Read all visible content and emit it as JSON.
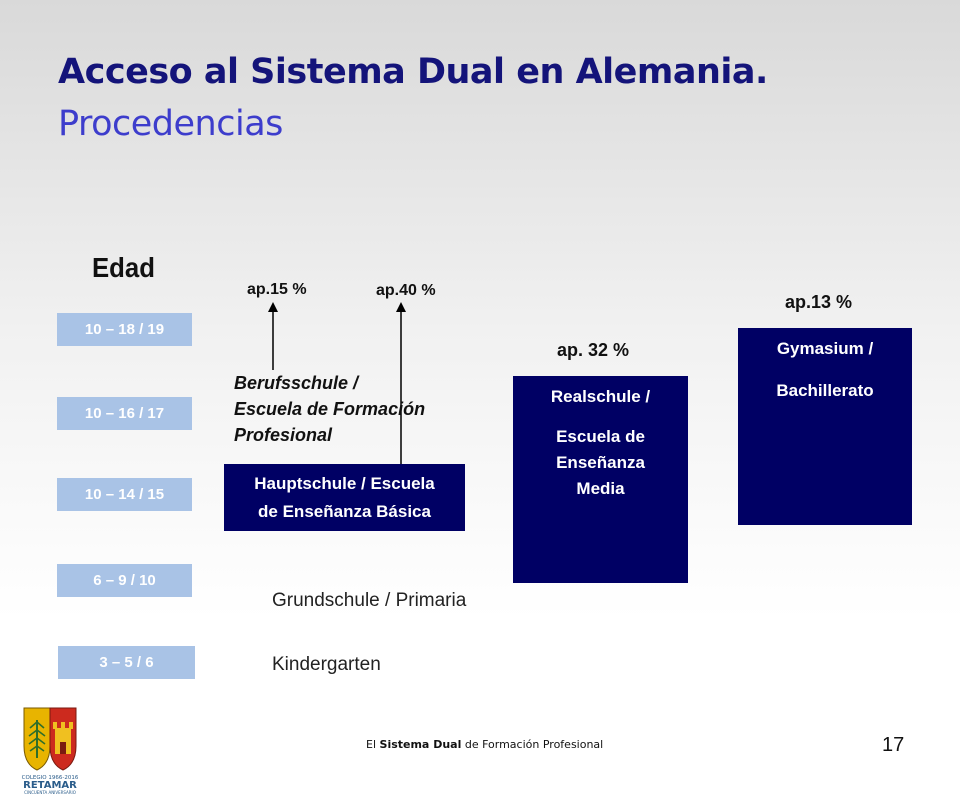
{
  "title": {
    "line1": "Acceso al Sistema Dual en Alemania.",
    "line2": "Procedencias"
  },
  "age_header": "Edad",
  "age_groups": [
    "10 – 18 / 19",
    "10 – 16 / 17",
    "10 – 14 / 15",
    "6 – 9 / 10",
    "3 – 5 / 6"
  ],
  "percentages": {
    "berufsschule": "ap.15 %",
    "hauptschule": "ap.40 %",
    "realschule": "ap. 32 %",
    "gymnasium": "ap.13 %"
  },
  "schools": {
    "berufsschule": [
      "Berufsschule /",
      "Escuela de Formación",
      "Profesional"
    ],
    "hauptschule": [
      "Hauptschule / Escuela",
      "de Enseñanza Básica"
    ],
    "realschule": [
      "Realschule /",
      "Escuela de",
      "Enseñanza",
      "Media"
    ],
    "gymnasium": [
      "Gymasium /",
      "Bachillerato"
    ],
    "grundschule": "Grundschule / Primaria",
    "kindergarten": "Kindergarten"
  },
  "footer": {
    "prefix": "El ",
    "bold": "Sistema Dual",
    "suffix": " de Formación Profesional"
  },
  "page_number": "17",
  "logo": {
    "line1": "COLEGIO 1966-2016",
    "line2": "RETAMAR",
    "line3": "CINCUENTA ANIVERSARIO"
  },
  "colors": {
    "title_dark": "#14147a",
    "title_light": "#3d3dcc",
    "navy_box": "#000064",
    "age_box": "#a9c3e6"
  }
}
